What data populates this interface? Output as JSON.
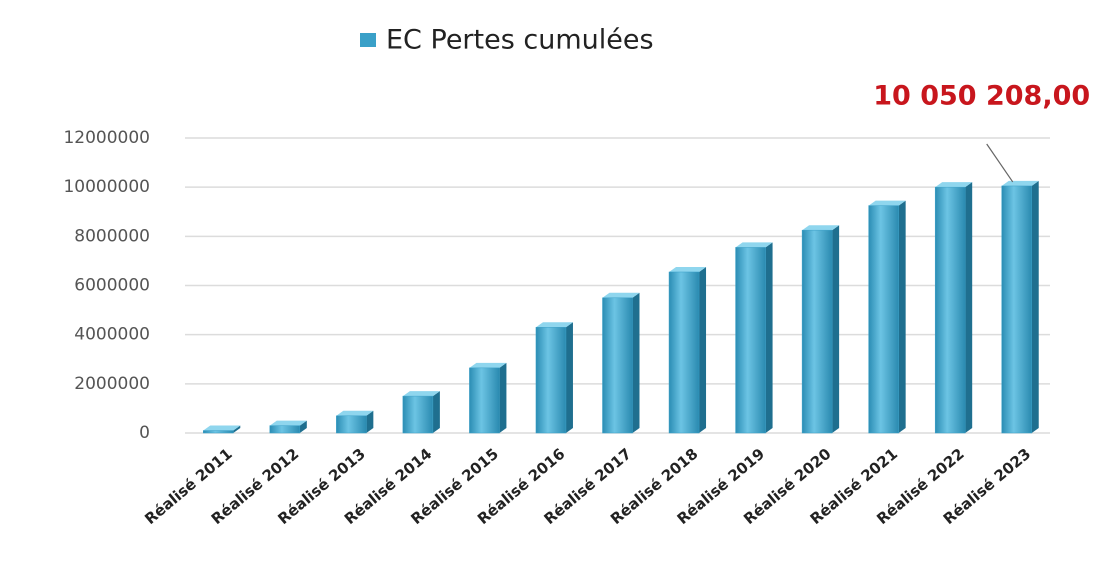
{
  "chart_data": {
    "type": "bar",
    "categories": [
      "Réalisé 2011",
      "Réalisé 2012",
      "Réalisé 2013",
      "Réalisé 2014",
      "Réalisé 2015",
      "Réalisé 2016",
      "Réalisé 2017",
      "Réalisé 2018",
      "Réalisé 2019",
      "Réalisé 2020",
      "Réalisé 2021",
      "Réalisé 2022",
      "Réalisé 2023"
    ],
    "series": [
      {
        "name": "EC Pertes cumulées",
        "color": "#3aa0c8",
        "values": [
          100000,
          300000,
          700000,
          1500000,
          2650000,
          4300000,
          5500000,
          6550000,
          7550000,
          8250000,
          9250000,
          10000000,
          10050208
        ],
        "value_labels": [
          null,
          null,
          null,
          null,
          null,
          null,
          null,
          null,
          null,
          null,
          null,
          null,
          "10 050 208,00"
        ]
      }
    ],
    "ylim": [
      0,
      12000000
    ],
    "yticks": [
      0,
      2000000,
      4000000,
      6000000,
      8000000,
      10000000,
      12000000
    ],
    "grid": true,
    "legend": "top"
  }
}
